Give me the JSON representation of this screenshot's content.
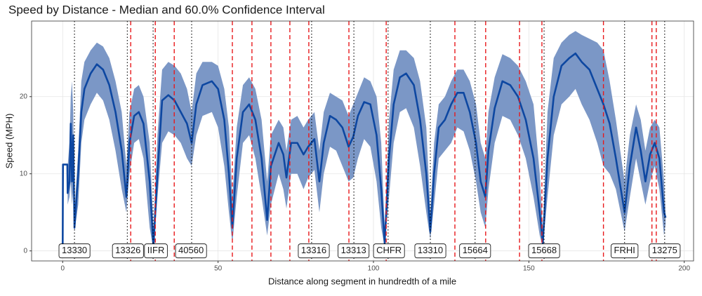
{
  "chart_data": {
    "type": "ribbon-line",
    "title": "Speed by Distance - Median and 60.0% Confidence Interval",
    "x_label": "Distance along segment in hundredth of a mile",
    "y_label": "Speed (MPH)",
    "xlim": [
      -10,
      203
    ],
    "ylim": [
      -1.3,
      29.8
    ],
    "xticks": [
      0,
      50,
      100,
      150,
      200
    ],
    "yticks": [
      0,
      10,
      20
    ],
    "grid": true,
    "x": [
      0,
      0.1,
      1.5,
      1.6,
      2.2,
      2.6,
      3.0,
      3.4,
      3.8,
      5,
      6,
      7,
      9,
      11,
      13,
      15,
      17,
      19,
      20.5,
      21.5,
      23,
      24.5,
      26,
      28,
      29.2,
      30.5,
      32,
      34,
      36,
      38,
      40,
      41.5,
      43,
      45,
      48,
      50,
      52,
      53.5,
      54.6,
      56,
      58,
      60,
      62,
      64,
      65.8,
      67,
      69.5,
      71,
      72,
      73.5,
      75.5,
      77.5,
      79,
      81,
      82.6,
      84,
      86,
      88,
      90,
      92,
      93.5,
      95,
      97,
      99,
      101,
      102.5,
      103.6,
      105,
      106.5,
      108.5,
      110.5,
      113,
      115,
      117,
      118.3,
      119.5,
      121,
      123,
      125,
      127,
      129,
      131,
      133,
      134.5,
      136,
      137,
      139,
      141.5,
      144,
      146.5,
      149,
      151.5,
      153.5,
      154.5,
      156,
      158,
      160.5,
      163,
      165,
      167,
      169.5,
      172,
      174,
      176,
      178,
      180.8,
      182.5,
      184.5,
      186,
      187.5,
      189,
      190.5,
      192,
      193.5,
      194
    ],
    "series": [
      {
        "color": "#0d47a1",
        "values": [
          0,
          11.2,
          11.2,
          7.5,
          9,
          16.5,
          9,
          15,
          3,
          10,
          18,
          21,
          23,
          24.2,
          23.5,
          21.5,
          18,
          13,
          7,
          14,
          17.5,
          18,
          16.5,
          9,
          0.5,
          10,
          19.5,
          20.2,
          19.5,
          18,
          16.5,
          14,
          19,
          21.5,
          22,
          21,
          17,
          10,
          3,
          12,
          18,
          19,
          17,
          12,
          4,
          11,
          14,
          12.5,
          9.5,
          14,
          14,
          12.5,
          13.5,
          14.5,
          9,
          14,
          17.5,
          17,
          16,
          13.5,
          14.8,
          17.5,
          19.3,
          19,
          15,
          8,
          1,
          12,
          19,
          22.5,
          23,
          21.5,
          17,
          10,
          2.5,
          10,
          16,
          17,
          19,
          20.5,
          20.5,
          18,
          14,
          9,
          7,
          13,
          18.5,
          22,
          21.5,
          20,
          17,
          12,
          5,
          1,
          12,
          20,
          24,
          25,
          25.6,
          24.5,
          23.5,
          21,
          19,
          16.5,
          12,
          5,
          11,
          16,
          13,
          9,
          12.5,
          14,
          12,
          5,
          4.3
        ]
      }
    ],
    "band": {
      "color": "#7b97c6",
      "lower": [
        null,
        null,
        null,
        6,
        7,
        9,
        6,
        8,
        2.5,
        6,
        14,
        17,
        19,
        20.5,
        19.5,
        17,
        13,
        8,
        5,
        10,
        14,
        14.5,
        12,
        3,
        0.2,
        7,
        14,
        15.5,
        15,
        14,
        12,
        11,
        15,
        17.5,
        18,
        16,
        11,
        5,
        1,
        7,
        14,
        15,
        12,
        7,
        2,
        6,
        10,
        8,
        5.5,
        10,
        10,
        8,
        9.5,
        10.5,
        5,
        10,
        13.5,
        13,
        11,
        9,
        9.5,
        12,
        14.5,
        13.5,
        9,
        3,
        0.5,
        7,
        14,
        18,
        18.5,
        16,
        11,
        5,
        1.5,
        6,
        12,
        13,
        14,
        16,
        15.5,
        13,
        9,
        5,
        3,
        8,
        14,
        17.5,
        17,
        15,
        12,
        7,
        2,
        0.5,
        7,
        15,
        19,
        20,
        21,
        19,
        17,
        14,
        11,
        10,
        8,
        2.5,
        7,
        12,
        9,
        6,
        9,
        11,
        8,
        2,
        3.5
      ],
      "upper": [
        null,
        null,
        null,
        11,
        14,
        20,
        22,
        18,
        5,
        13,
        22,
        24.5,
        26,
        27,
        26.5,
        25,
        22,
        18,
        11,
        18,
        21,
        21.5,
        20,
        14,
        3,
        15,
        23.5,
        24.5,
        24,
        23,
        21,
        18,
        23,
        24.5,
        24.5,
        24,
        21,
        16,
        7,
        16,
        21.5,
        22.5,
        21,
        17,
        9,
        15,
        17,
        16,
        13,
        17,
        17.5,
        16,
        17,
        18,
        13,
        18,
        20.5,
        20,
        19.5,
        17.5,
        19,
        20.5,
        22.5,
        22,
        20,
        14,
        3,
        17,
        23.5,
        26,
        26,
        25,
        22,
        16,
        5,
        14,
        19,
        20,
        22,
        23.5,
        23.5,
        22,
        19,
        14,
        12,
        18,
        22.5,
        25.5,
        25,
        24,
        22,
        19,
        10,
        3,
        18,
        25,
        27,
        28,
        28.5,
        28,
        27.5,
        27,
        26,
        22,
        17,
        9,
        15,
        19,
        17,
        13,
        16,
        17,
        16,
        9,
        5
      ]
    },
    "dotted_lines": {
      "color": "#000000",
      "x": [
        3.8,
        20.8,
        29.1,
        41.5,
        80.1,
        93.7,
        104.7,
        118.3,
        132.7,
        154.9,
        180.8,
        193.7
      ]
    },
    "dashed_lines": {
      "color": "#e8191c",
      "x": [
        21.9,
        29.8,
        35.9,
        54.6,
        60.9,
        67,
        73.1,
        79.2,
        92.1,
        104.1,
        126.2,
        136.1,
        147,
        154.2,
        174,
        189.6,
        191
      ]
    },
    "annotations": [
      {
        "x": 3.8,
        "text": "13330"
      },
      {
        "x": 21,
        "text": "13326"
      },
      {
        "x": 30,
        "text": "IIFR"
      },
      {
        "x": 41.3,
        "text": "40560"
      },
      {
        "x": 80.8,
        "text": "13316"
      },
      {
        "x": 93.6,
        "text": "13313"
      },
      {
        "x": 105,
        "text": "CHFR"
      },
      {
        "x": 118.3,
        "text": "13310"
      },
      {
        "x": 132.7,
        "text": "15664"
      },
      {
        "x": 154.9,
        "text": "15668"
      },
      {
        "x": 180.8,
        "text": "FRHI"
      },
      {
        "x": 193.7,
        "text": "13275"
      }
    ]
  }
}
